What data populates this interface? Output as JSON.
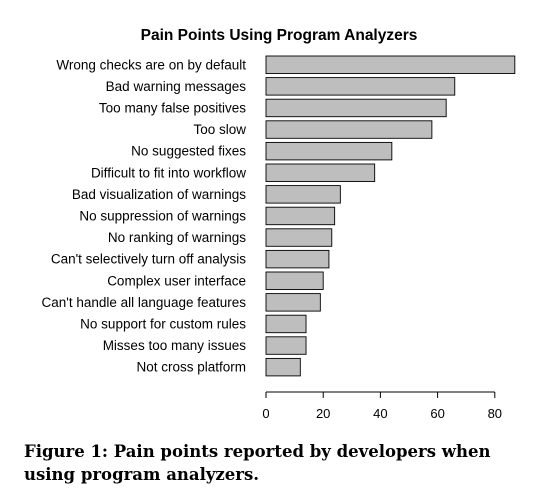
{
  "chart_data": {
    "type": "bar",
    "orientation": "horizontal",
    "title": "Pain Points Using Program Analyzers",
    "xlabel": "",
    "ylabel": "",
    "categories": [
      "Wrong checks are on by default",
      "Bad warning messages",
      "Too many false positives",
      "Too slow",
      "No suggested fixes",
      "Difficult to fit into workflow",
      "Bad visualization of warnings",
      "No suppression of warnings",
      "No ranking of warnings",
      "Can't selectively turn off analysis",
      "Complex user interface",
      "Can't handle all language features",
      "No support for custom rules",
      "Misses too many issues",
      "Not cross platform"
    ],
    "values": [
      87,
      66,
      63,
      58,
      44,
      38,
      26,
      24,
      23,
      22,
      20,
      19,
      14,
      14,
      12
    ],
    "xlim": [
      0,
      87
    ],
    "xticks": [
      0,
      20,
      40,
      60,
      80
    ],
    "grid": false,
    "bar_color": "#bebebe",
    "bar_edge_color": "#000000"
  },
  "caption": "Figure 1: Pain points reported by developers when using program analyzers."
}
